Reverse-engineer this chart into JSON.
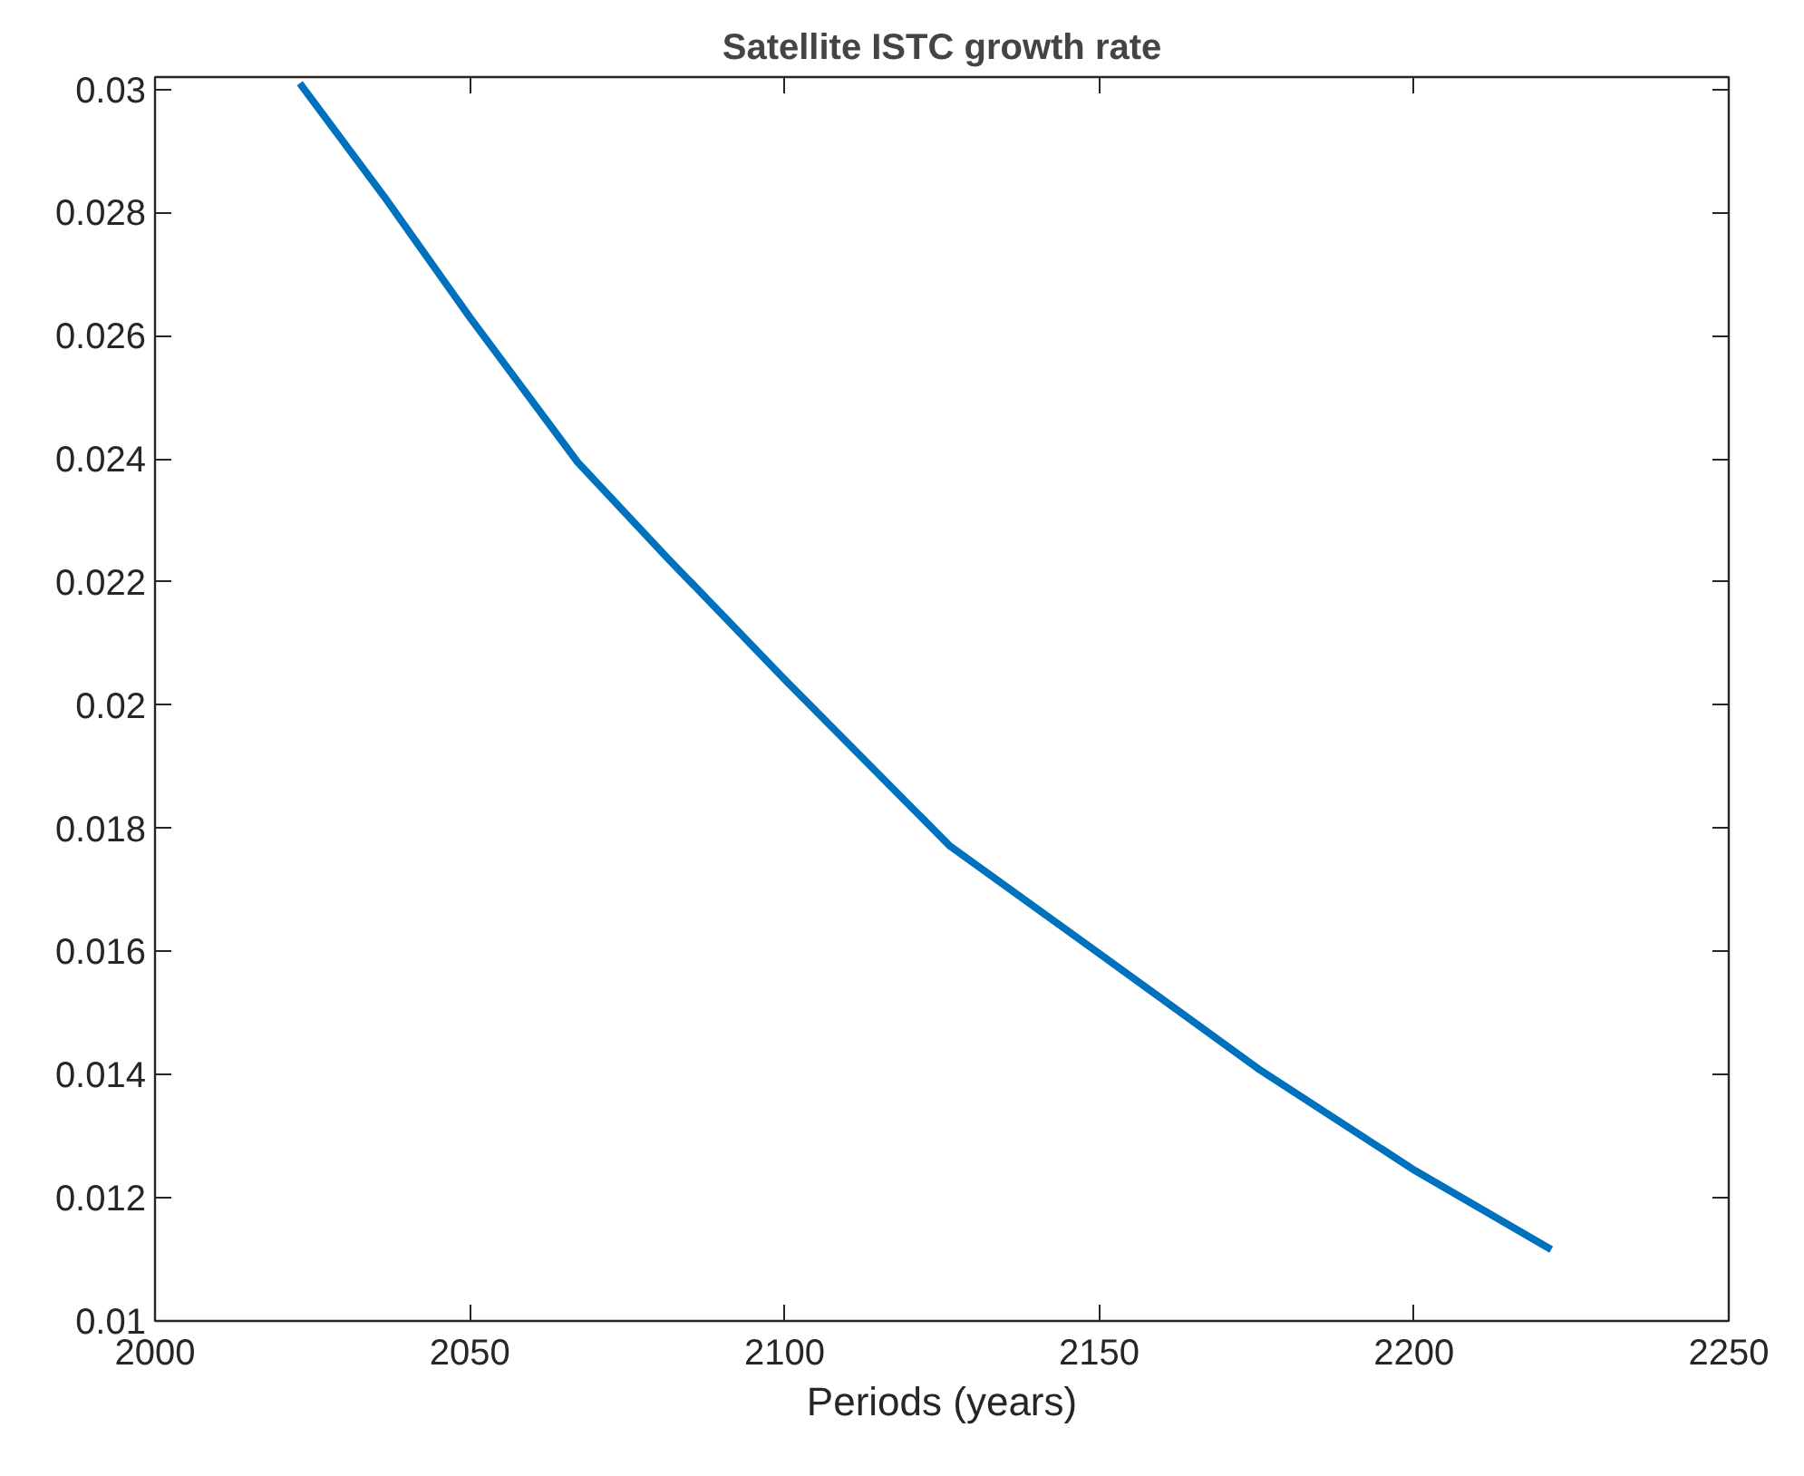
{
  "chart_data": {
    "type": "line",
    "title": "Satellite ISTC growth rate",
    "xlabel": "Periods (years)",
    "x": [
      2023,
      2036.4,
      2050,
      2067.1,
      2081.5,
      2100,
      2126.3,
      2150.1,
      2175.2,
      2200.2,
      2221.8
    ],
    "series": [
      {
        "color": "#0072bd",
        "values": [
          0.0301,
          0.02826,
          0.0263,
          0.02395,
          0.02238,
          0.02042,
          0.01771,
          0.01596,
          0.0141,
          0.01244,
          0.01116
        ]
      }
    ],
    "xlim": [
      2000,
      2250
    ],
    "ylim": [
      0.01,
      0.0302
    ],
    "xticks": [
      2000,
      2050,
      2100,
      2150,
      2200,
      2250
    ],
    "yticks": [
      0.01,
      0.012,
      0.014,
      0.016,
      0.018,
      0.02,
      0.022,
      0.024,
      0.026,
      0.028,
      0.03
    ],
    "grid": false,
    "marker": "none",
    "line_style": "solid"
  }
}
